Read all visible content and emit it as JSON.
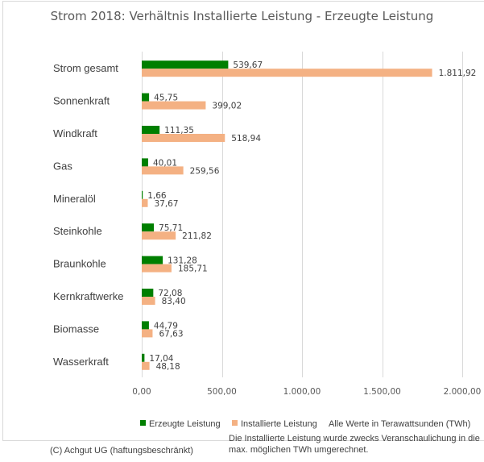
{
  "chart_data": {
    "type": "bar",
    "orientation": "horizontal",
    "title": "Strom 2018: Verhältnis Installierte Leistung - Erzeugte Leistung",
    "categories": [
      "Strom gesamt",
      "Sonnenkraft",
      "Windkraft",
      "Gas",
      "Mineralöl",
      "Steinkohle",
      "Braunkohle",
      "Kernkraftwerke",
      "Biomasse",
      "Wasserkraft"
    ],
    "series": [
      {
        "name": "Erzeugte Leistung",
        "color": "#007f00",
        "values": [
          539.67,
          45.75,
          111.35,
          40.01,
          1.66,
          75.71,
          131.28,
          72.08,
          44.79,
          17.04
        ],
        "labels": [
          "539,67",
          "45,75",
          "111,35",
          "40,01",
          "1,66",
          "75,71",
          "131,28",
          "72,08",
          "44,79",
          "17,04"
        ]
      },
      {
        "name": "Installierte Leistung",
        "color": "#f4b183",
        "values": [
          1811.92,
          399.02,
          518.94,
          259.56,
          37.67,
          211.82,
          185.71,
          83.4,
          67.63,
          48.18
        ],
        "labels": [
          "1.811,92",
          "399,02",
          "518,94",
          "259,56",
          "37,67",
          "211,82",
          "185,71",
          "83,40",
          "67,63",
          "48,18"
        ]
      }
    ],
    "xlim": [
      0,
      2000
    ],
    "xticks": [
      0,
      500,
      1000,
      1500,
      2000
    ],
    "xtick_labels": [
      "0,00",
      "500,00",
      "1.000,00",
      "1.500,00",
      "2.000,00"
    ],
    "xlabel": "",
    "ylabel": "",
    "grid": true,
    "legend_position": "bottom",
    "unit_note": "Alle Werte in Terawattsunden (TWh)"
  },
  "footer": {
    "note": "Die Installierte Leistung wurde zwecks Veranschaulichung in die max. möglichen TWh umgerechnet.",
    "copyright": "(C) Achgut UG (haftungsbeschränkt)"
  }
}
